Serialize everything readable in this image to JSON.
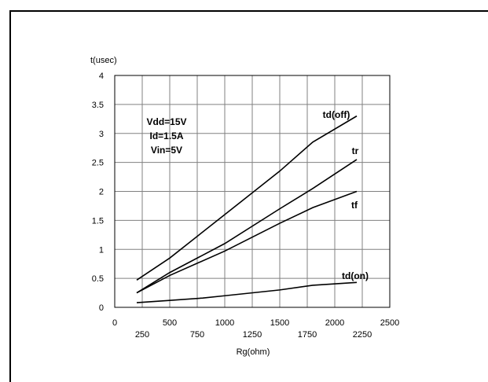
{
  "chart_data": {
    "type": "line",
    "title": "",
    "ylabel": "t(usec)",
    "xlabel": "Rg(ohm)",
    "xlim": [
      0,
      2500
    ],
    "ylim": [
      0,
      4
    ],
    "grid": true,
    "x_ticks_upper": [
      "0",
      "500",
      "1000",
      "1500",
      "2000",
      "2500"
    ],
    "x_ticks_lower": [
      "250",
      "750",
      "1250",
      "1750",
      "2250"
    ],
    "y_ticks": [
      "0",
      "0.5",
      "1",
      "1.5",
      "2",
      "2.5",
      "3",
      "3.5",
      "4"
    ],
    "annotation": [
      "Vdd=15V",
      "Id=1.5A",
      "Vin=5V"
    ],
    "series": [
      {
        "name": "td(off)",
        "x": [
          200,
          500,
          1000,
          1500,
          1800,
          2200
        ],
        "y": [
          0.47,
          0.85,
          1.6,
          2.35,
          2.85,
          3.3
        ]
      },
      {
        "name": "tr",
        "x": [
          200,
          500,
          1000,
          1500,
          1800,
          2200
        ],
        "y": [
          0.25,
          0.6,
          1.1,
          1.7,
          2.05,
          2.55
        ]
      },
      {
        "name": "tf",
        "x": [
          200,
          500,
          1000,
          1500,
          1800,
          2200
        ],
        "y": [
          0.25,
          0.55,
          0.97,
          1.45,
          1.72,
          2.0
        ]
      },
      {
        "name": "td(on)",
        "x": [
          200,
          500,
          800,
          1000,
          1500,
          1800,
          2200
        ],
        "y": [
          0.08,
          0.12,
          0.16,
          0.2,
          0.3,
          0.38,
          0.43
        ]
      }
    ]
  }
}
